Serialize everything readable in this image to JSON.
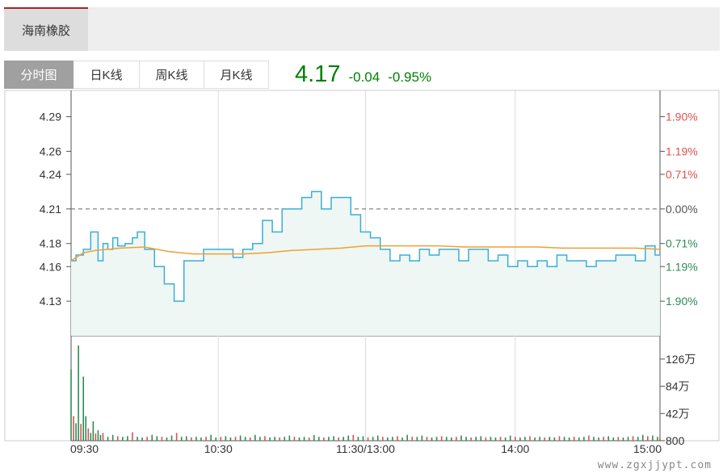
{
  "stock": {
    "name": "海南橡胶"
  },
  "tabs": [
    {
      "label": "分时图",
      "active": true
    },
    {
      "label": "日K线",
      "active": false
    },
    {
      "label": "周K线",
      "active": false
    },
    {
      "label": "月K线",
      "active": false
    }
  ],
  "quote": {
    "price": "4.17",
    "change": "-0.04",
    "change_pct": "-0.95%"
  },
  "watermark": "www.zgxjjypt.com",
  "colors": {
    "up": "#d9534f",
    "down": "#2e8b57",
    "price_line": "#3aaed8",
    "avg_line": "#f0a030",
    "area_fill": "#eef7f3",
    "grid": "#dddddd"
  },
  "chart_data": {
    "type": "line",
    "prev_close": 4.21,
    "ylim": [
      4.1,
      4.31
    ],
    "y_ticks_left": [
      "4.29",
      "4.26",
      "4.24",
      "4.21",
      "4.18",
      "4.16",
      "4.13"
    ],
    "y_ticks_right": [
      "1.90%",
      "1.19%",
      "0.71%",
      "0.00%",
      "0.71%",
      "1.19%",
      "1.90%"
    ],
    "x_ticks": [
      "09:30",
      "10:30",
      "11:30/13:00",
      "14:00",
      "15:00"
    ],
    "volume_ticks": [
      "126万",
      "84万",
      "42万",
      "800"
    ],
    "volume_max": 1470000,
    "session_minutes": 241,
    "series": [
      {
        "name": "price",
        "x": [
          0,
          2,
          5,
          8,
          11,
          13,
          15,
          17,
          19,
          22,
          25,
          27,
          30,
          34,
          38,
          42,
          46,
          50,
          54,
          58,
          62,
          66,
          70,
          74,
          78,
          82,
          86,
          90,
          94,
          98,
          102,
          106,
          110,
          114,
          118,
          122,
          126,
          130,
          134,
          138,
          142,
          146,
          150,
          154,
          158,
          162,
          166,
          170,
          174,
          178,
          182,
          186,
          190,
          194,
          198,
          202,
          206,
          210,
          214,
          218,
          222,
          226,
          230,
          234,
          238,
          240
        ],
        "values": [
          4.165,
          4.17,
          4.175,
          4.19,
          4.165,
          4.18,
          4.175,
          4.185,
          4.178,
          4.18,
          4.185,
          4.19,
          4.175,
          4.16,
          4.145,
          4.13,
          4.165,
          4.165,
          4.175,
          4.175,
          4.175,
          4.168,
          4.175,
          4.18,
          4.2,
          4.19,
          4.21,
          4.21,
          4.22,
          4.225,
          4.21,
          4.22,
          4.22,
          4.205,
          4.19,
          4.185,
          4.175,
          4.165,
          4.17,
          4.165,
          4.175,
          4.17,
          4.175,
          4.175,
          4.165,
          4.175,
          4.175,
          4.165,
          4.17,
          4.16,
          4.165,
          4.16,
          4.165,
          4.16,
          4.17,
          4.165,
          4.165,
          4.16,
          4.165,
          4.165,
          4.17,
          4.17,
          4.165,
          4.178,
          4.17,
          4.17
        ]
      },
      {
        "name": "avg",
        "x": [
          0,
          5,
          10,
          20,
          30,
          40,
          50,
          60,
          70,
          80,
          90,
          100,
          110,
          120,
          130,
          140,
          150,
          160,
          170,
          180,
          190,
          200,
          210,
          220,
          230,
          240
        ],
        "values": [
          4.165,
          4.172,
          4.174,
          4.176,
          4.177,
          4.173,
          4.171,
          4.171,
          4.171,
          4.172,
          4.174,
          4.175,
          4.176,
          4.178,
          4.178,
          4.178,
          4.178,
          4.177,
          4.177,
          4.177,
          4.177,
          4.176,
          4.176,
          4.176,
          4.176,
          4.175
        ]
      }
    ],
    "volume": [
      [
        0,
        1100000
      ],
      [
        1,
        380000
      ],
      [
        2,
        270000
      ],
      [
        3,
        1470000
      ],
      [
        4,
        260000
      ],
      [
        5,
        990000
      ],
      [
        6,
        380000
      ],
      [
        7,
        190000
      ],
      [
        8,
        120000
      ],
      [
        9,
        300000
      ],
      [
        10,
        110000
      ],
      [
        11,
        160000
      ],
      [
        12,
        90000
      ],
      [
        13,
        120000
      ],
      [
        15,
        60000
      ],
      [
        17,
        90000
      ],
      [
        19,
        70000
      ],
      [
        21,
        60000
      ],
      [
        23,
        70000
      ],
      [
        25,
        130000
      ],
      [
        27,
        60000
      ],
      [
        29,
        50000
      ],
      [
        31,
        60000
      ],
      [
        33,
        90000
      ],
      [
        35,
        70000
      ],
      [
        37,
        60000
      ],
      [
        39,
        50000
      ],
      [
        41,
        80000
      ],
      [
        43,
        120000
      ],
      [
        45,
        60000
      ],
      [
        47,
        70000
      ],
      [
        49,
        50000
      ],
      [
        51,
        60000
      ],
      [
        53,
        50000
      ],
      [
        55,
        60000
      ],
      [
        57,
        90000
      ],
      [
        59,
        50000
      ],
      [
        61,
        60000
      ],
      [
        63,
        70000
      ],
      [
        65,
        50000
      ],
      [
        67,
        60000
      ],
      [
        69,
        80000
      ],
      [
        71,
        60000
      ],
      [
        73,
        50000
      ],
      [
        75,
        90000
      ],
      [
        77,
        60000
      ],
      [
        79,
        70000
      ],
      [
        81,
        50000
      ],
      [
        83,
        60000
      ],
      [
        85,
        50000
      ],
      [
        87,
        60000
      ],
      [
        89,
        80000
      ],
      [
        91,
        60000
      ],
      [
        93,
        50000
      ],
      [
        95,
        60000
      ],
      [
        97,
        50000
      ],
      [
        99,
        90000
      ],
      [
        101,
        60000
      ],
      [
        103,
        50000
      ],
      [
        105,
        60000
      ],
      [
        107,
        70000
      ],
      [
        109,
        50000
      ],
      [
        111,
        60000
      ],
      [
        113,
        80000
      ],
      [
        115,
        90000
      ],
      [
        117,
        60000
      ],
      [
        119,
        70000
      ],
      [
        121,
        50000
      ],
      [
        123,
        60000
      ],
      [
        125,
        80000
      ],
      [
        127,
        60000
      ],
      [
        129,
        50000
      ],
      [
        131,
        60000
      ],
      [
        133,
        70000
      ],
      [
        135,
        50000
      ],
      [
        137,
        90000
      ],
      [
        139,
        60000
      ],
      [
        141,
        60000
      ],
      [
        143,
        80000
      ],
      [
        145,
        60000
      ],
      [
        147,
        50000
      ],
      [
        149,
        60000
      ],
      [
        151,
        70000
      ],
      [
        153,
        60000
      ],
      [
        155,
        50000
      ],
      [
        157,
        60000
      ],
      [
        159,
        80000
      ],
      [
        161,
        60000
      ],
      [
        163,
        50000
      ],
      [
        165,
        60000
      ],
      [
        167,
        70000
      ],
      [
        169,
        50000
      ],
      [
        171,
        60000
      ],
      [
        173,
        50000
      ],
      [
        175,
        60000
      ],
      [
        177,
        50000
      ],
      [
        179,
        80000
      ],
      [
        181,
        60000
      ],
      [
        183,
        50000
      ],
      [
        185,
        60000
      ],
      [
        187,
        70000
      ],
      [
        189,
        50000
      ],
      [
        191,
        60000
      ],
      [
        193,
        50000
      ],
      [
        195,
        60000
      ],
      [
        197,
        50000
      ],
      [
        199,
        70000
      ],
      [
        201,
        60000
      ],
      [
        203,
        50000
      ],
      [
        205,
        60000
      ],
      [
        207,
        50000
      ],
      [
        209,
        60000
      ],
      [
        211,
        80000
      ],
      [
        213,
        60000
      ],
      [
        215,
        50000
      ],
      [
        217,
        60000
      ],
      [
        219,
        70000
      ],
      [
        221,
        50000
      ],
      [
        223,
        60000
      ],
      [
        225,
        50000
      ],
      [
        227,
        60000
      ],
      [
        229,
        70000
      ],
      [
        231,
        60000
      ],
      [
        233,
        90000
      ],
      [
        235,
        70000
      ],
      [
        237,
        80000
      ],
      [
        239,
        60000
      ],
      [
        240,
        50000
      ]
    ]
  }
}
